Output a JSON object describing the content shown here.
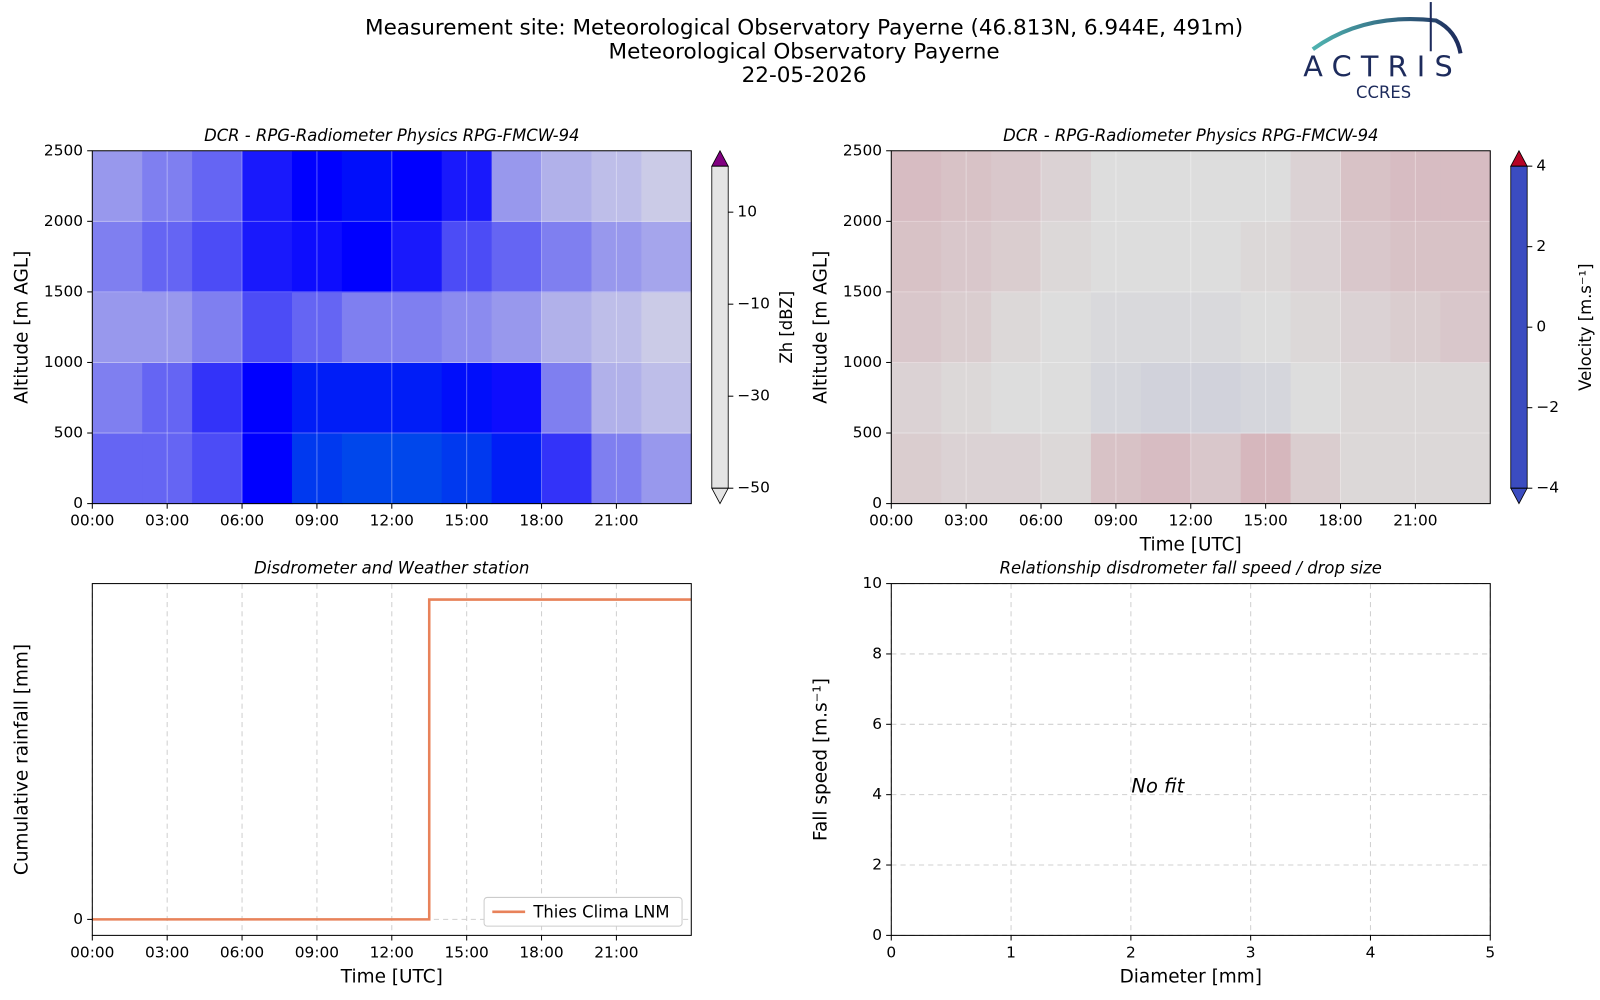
{
  "header": {
    "title_lines": [
      "Measurement site: Meteorological Observatory Payerne (46.813N, 6.944E, 491m)",
      "Meteorological Observatory Payerne",
      "22-05-2026"
    ],
    "logo": "ACTRIS",
    "logo_subtitle": "CCRES"
  },
  "chart_data": [
    {
      "type": "heatmap",
      "title": "DCR - RPG-Radiometer Physics RPG-FMCW-94",
      "ylabel": "Altitude [m AGL]",
      "xlim": [
        0,
        24
      ],
      "xticks": [
        {
          "value": 0,
          "label": "00:00"
        },
        {
          "value": 3,
          "label": "03:00"
        },
        {
          "value": 6,
          "label": "06:00"
        },
        {
          "value": 9,
          "label": "09:00"
        },
        {
          "value": 12,
          "label": "12:00"
        },
        {
          "value": 15,
          "label": "15:00"
        },
        {
          "value": 18,
          "label": "18:00"
        },
        {
          "value": 21,
          "label": "21:00"
        }
      ],
      "ylim": [
        0,
        2500
      ],
      "yticks": [
        0,
        500,
        1000,
        1500,
        2000,
        2500
      ],
      "x_bins": [
        0,
        2,
        4,
        6,
        8,
        10,
        12,
        14,
        16,
        18,
        20,
        22,
        24
      ],
      "y_bins": [
        0,
        500,
        1000,
        1500,
        2000,
        2500
      ],
      "z": [
        [
          -40,
          -40,
          -38,
          -32,
          -28,
          -27,
          -27,
          -28,
          -30,
          -36,
          -42,
          -44
        ],
        [
          -42,
          -40,
          -36,
          -32,
          -30,
          -30,
          -30,
          -31,
          -33,
          -42,
          -46,
          -47
        ],
        [
          -44,
          -44,
          -42,
          -38,
          -40,
          -42,
          -42,
          -43,
          -44,
          -46,
          -47,
          -48
        ],
        [
          -42,
          -40,
          -38,
          -34,
          -33,
          -32,
          -34,
          -38,
          -40,
          -42,
          -44,
          -45
        ],
        [
          -44,
          -42,
          -40,
          -34,
          -32,
          -31,
          -32,
          -34,
          -44,
          -46,
          -47,
          -48
        ]
      ],
      "colorbar": {
        "label": "Zh [dBZ]",
        "clim": [
          -50,
          20
        ],
        "ticks": [
          {
            "value": -50,
            "label": "−50"
          },
          {
            "value": -30,
            "label": "−30"
          },
          {
            "value": -10,
            "label": "−10"
          },
          10
        ],
        "colorscale": [
          [
            -50,
            "#e4e4e4"
          ],
          [
            -32,
            "#0000ff"
          ],
          [
            -18,
            "#00c8c8"
          ],
          [
            -10,
            "#00ff00"
          ],
          [
            0,
            "#ffff00"
          ],
          [
            10,
            "#ff0000"
          ],
          [
            20,
            "#800080"
          ]
        ]
      },
      "grid": true
    },
    {
      "type": "heatmap",
      "title": "DCR - RPG-Radiometer Physics RPG-FMCW-94",
      "ylabel": "Altitude [m AGL]",
      "xlabel": "Time [UTC]",
      "xlim": [
        0,
        24
      ],
      "xticks": [
        {
          "value": 0,
          "label": "00:00"
        },
        {
          "value": 3,
          "label": "03:00"
        },
        {
          "value": 6,
          "label": "06:00"
        },
        {
          "value": 9,
          "label": "09:00"
        },
        {
          "value": 12,
          "label": "12:00"
        },
        {
          "value": 15,
          "label": "15:00"
        },
        {
          "value": 18,
          "label": "18:00"
        },
        {
          "value": 21,
          "label": "21:00"
        }
      ],
      "ylim": [
        0,
        2500
      ],
      "yticks": [
        0,
        500,
        1000,
        1500,
        2000,
        2500
      ],
      "x_bins": [
        0,
        2,
        4,
        6,
        8,
        10,
        12,
        14,
        16,
        18,
        20,
        22,
        24
      ],
      "y_bins": [
        0,
        500,
        1000,
        1500,
        2000,
        2500
      ],
      "z": [
        [
          0.3,
          0.2,
          0.2,
          0.1,
          0.5,
          0.6,
          0.4,
          0.7,
          0.3,
          0.1,
          0.1,
          0.1
        ],
        [
          0.2,
          0.1,
          0,
          0,
          -0.2,
          -0.3,
          -0.3,
          -0.2,
          0,
          0.1,
          0.1,
          0.1
        ],
        [
          0.4,
          0.3,
          0.1,
          0,
          -0.1,
          -0.1,
          -0.1,
          0,
          0.1,
          0.2,
          0.3,
          0.4
        ],
        [
          0.5,
          0.4,
          0.3,
          0.1,
          0,
          0,
          0,
          0.1,
          0.2,
          0.4,
          0.5,
          0.5
        ],
        [
          0.6,
          0.5,
          0.4,
          0.2,
          0,
          0,
          0,
          0,
          0.2,
          0.5,
          0.6,
          0.6
        ]
      ],
      "colorbar": {
        "label": "Velocity [m.s⁻¹]",
        "clim": [
          -4,
          4
        ],
        "ticks": [
          {
            "value": -4,
            "label": "−4"
          },
          {
            "value": -2,
            "label": "−2"
          },
          0,
          2,
          4
        ],
        "colorscale": [
          [
            -4,
            "#3b4cc0"
          ],
          [
            0,
            "#dddddd"
          ],
          [
            4,
            "#b40426"
          ]
        ]
      },
      "grid": true
    },
    {
      "type": "line",
      "title": "Disdrometer and Weather station",
      "ylabel": "Cumulative rainfall [mm]",
      "xlabel": "Time [UTC]",
      "xlim": [
        0,
        24
      ],
      "xticks": [
        {
          "value": 0,
          "label": "00:00"
        },
        {
          "value": 3,
          "label": "03:00"
        },
        {
          "value": 6,
          "label": "06:00"
        },
        {
          "value": 9,
          "label": "09:00"
        },
        {
          "value": 12,
          "label": "12:00"
        },
        {
          "value": 15,
          "label": "15:00"
        },
        {
          "value": 18,
          "label": "18:00"
        },
        {
          "value": 21,
          "label": "21:00"
        }
      ],
      "ylim": [
        -0.05,
        1.05
      ],
      "yticks": [
        0
      ],
      "series": [
        {
          "name": "Thies Clima LNM",
          "color": "#e8825a",
          "x": [
            0,
            13.5,
            13.5,
            24
          ],
          "values": [
            0,
            0,
            1,
            1
          ]
        }
      ],
      "legend": "lower right",
      "grid": true
    },
    {
      "type": "scatter",
      "title": "Relationship disdrometer fall speed / drop size",
      "ylabel": "Fall speed [m.s⁻¹]",
      "xlabel": "Diameter [mm]",
      "xlim": [
        0,
        5
      ],
      "xticks": [
        0,
        1,
        2,
        3,
        4,
        5
      ],
      "ylim": [
        0,
        10
      ],
      "yticks": [
        0,
        2,
        4,
        6,
        8,
        10
      ],
      "annotation": "No fit",
      "grid": true
    }
  ]
}
